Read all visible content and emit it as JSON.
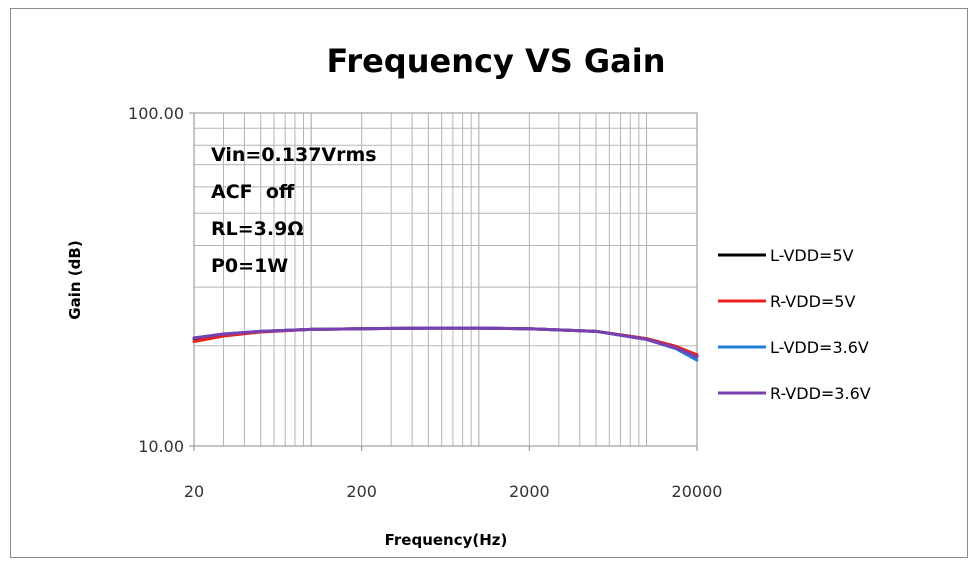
{
  "chart_data": {
    "type": "line",
    "title": "Frequency VS Gain",
    "xlabel": "Frequency(Hz)",
    "ylabel": "Gain (dB)",
    "x_scale": "log",
    "y_scale": "log",
    "xlim": [
      20,
      20000
    ],
    "ylim": [
      10,
      100
    ],
    "x_ticks": [
      "20",
      "200",
      "2000",
      "20000"
    ],
    "y_ticks": [
      "10.00",
      "100.00"
    ],
    "grid": true,
    "legend_position": "right",
    "annotations": [
      "Vin=0.137Vrms",
      "ACF  off",
      "RL=3.9Ω",
      "P0=1W"
    ],
    "x": [
      20,
      30,
      50,
      100,
      200,
      500,
      1000,
      2000,
      5000,
      10000,
      15000,
      20000
    ],
    "series": [
      {
        "name": "L-VDD=5V",
        "color": "#000000",
        "values": [
          21.0,
          21.6,
          22.1,
          22.4,
          22.5,
          22.6,
          22.6,
          22.5,
          22.1,
          21.0,
          19.9,
          18.7
        ]
      },
      {
        "name": "R-VDD=5V",
        "color": "#e8211d",
        "values": [
          20.6,
          21.4,
          22.0,
          22.4,
          22.5,
          22.6,
          22.6,
          22.5,
          22.1,
          21.0,
          19.9,
          18.8
        ]
      },
      {
        "name": "L-VDD=3.6V",
        "color": "#1f7fd4",
        "values": [
          21.1,
          21.7,
          22.1,
          22.4,
          22.5,
          22.6,
          22.6,
          22.5,
          22.1,
          20.9,
          19.6,
          18.1
        ]
      },
      {
        "name": "R-VDD=3.6V",
        "color": "#7a3fb0",
        "values": [
          21.1,
          21.7,
          22.1,
          22.4,
          22.5,
          22.6,
          22.6,
          22.5,
          22.1,
          20.9,
          19.7,
          18.5
        ]
      }
    ]
  }
}
